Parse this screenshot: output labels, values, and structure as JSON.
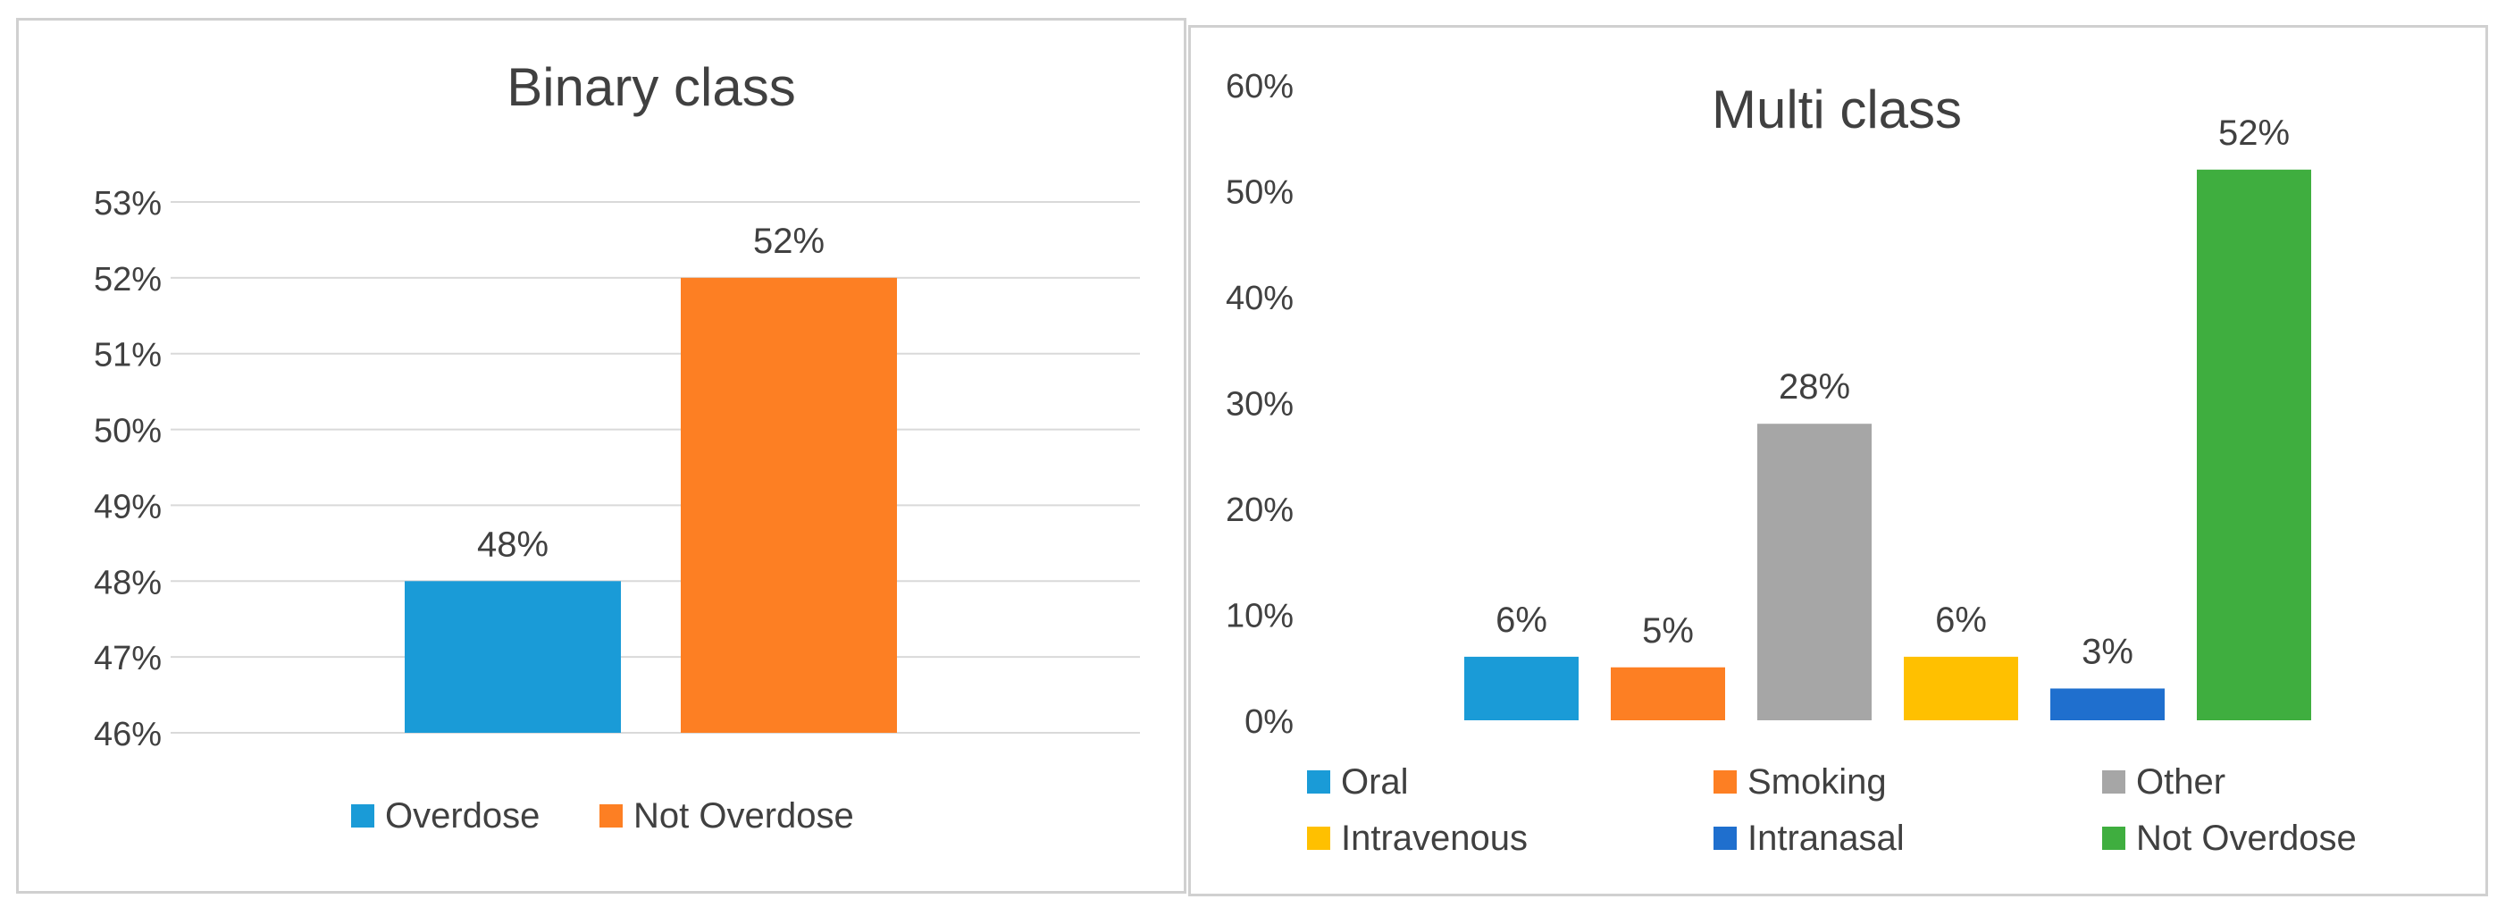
{
  "charts": [
    {
      "type": "bar",
      "title": "Binary class",
      "categories": [
        "Overdose",
        "Not Overdose"
      ],
      "values": [
        48,
        52
      ],
      "colors": [
        "#1a9bd7",
        "#fd7f23"
      ],
      "data_labels": [
        "48%",
        "52%"
      ],
      "ylim": [
        46,
        53
      ],
      "yticks": [
        "46%",
        "47%",
        "48%",
        "49%",
        "50%",
        "51%",
        "52%",
        "53%"
      ],
      "legend": [
        "Overdose",
        "Not Overdose"
      ],
      "legend_position": "bottom",
      "grid": true
    },
    {
      "type": "bar",
      "title": "Multi class",
      "categories": [
        "Oral",
        "Smoking",
        "Other",
        "Intravenous",
        "Intranasal",
        "Not Overdose"
      ],
      "values": [
        6,
        5,
        28,
        6,
        3,
        52
      ],
      "colors": [
        "#1a9bd7",
        "#fd7f23",
        "#a6a6a6",
        "#ffc000",
        "#1f6fce",
        "#3fae3f"
      ],
      "data_labels": [
        "6%",
        "5%",
        "28%",
        "6%",
        "3%",
        "52%"
      ],
      "ylim": [
        0,
        60
      ],
      "yticks": [
        "0%",
        "10%",
        "20%",
        "30%",
        "40%",
        "50%",
        "60%"
      ],
      "legend": [
        "Oral",
        "Smoking",
        "Other",
        "Intravenous",
        "Intranasal",
        "Not Overdose"
      ],
      "legend_position": "bottom",
      "grid": false
    }
  ],
  "chart_data": [
    {
      "type": "bar",
      "title": "Binary class",
      "categories": [
        "Overdose",
        "Not Overdose"
      ],
      "values": [
        48,
        52
      ],
      "ylim": [
        46,
        53
      ]
    },
    {
      "type": "bar",
      "title": "Multi class",
      "categories": [
        "Oral",
        "Smoking",
        "Other",
        "Intravenous",
        "Intranasal",
        "Not Overdose"
      ],
      "values": [
        6,
        5,
        28,
        6,
        3,
        52
      ],
      "ylim": [
        0,
        60
      ]
    }
  ]
}
